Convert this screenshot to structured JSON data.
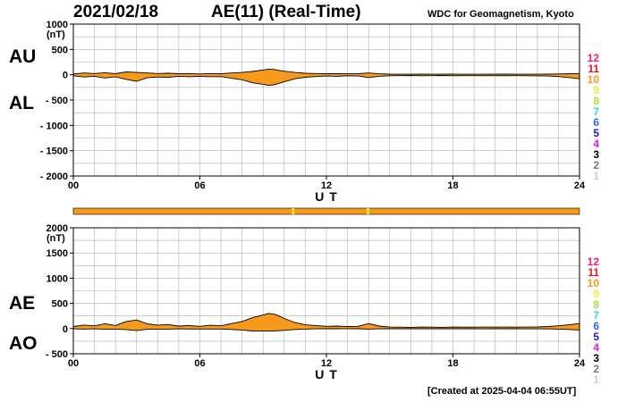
{
  "header": {
    "date": "2021/02/18",
    "title": "AE(11) (Real-Time)",
    "source": "WDC for Geomagnetism, Kyoto"
  },
  "footer": {
    "created": "[Created at 2025-04-04 06:55UT]"
  },
  "colors": {
    "fill": "#f79a1c",
    "outline": "#000000",
    "grid": "#b0b0b0",
    "status_bar": "#f79a1c",
    "status_gap": "#f5e03a"
  },
  "station_legend": [
    {
      "label": "12",
      "color": "#ff1d72"
    },
    {
      "label": "11",
      "color": "#e8141e"
    },
    {
      "label": "10",
      "color": "#f79a1c"
    },
    {
      "label": "9",
      "color": "#f2ea3a"
    },
    {
      "label": "8",
      "color": "#a8e03a"
    },
    {
      "label": "7",
      "color": "#30d9e8"
    },
    {
      "label": "6",
      "color": "#2a6be8"
    },
    {
      "label": "5",
      "color": "#2c16c8"
    },
    {
      "label": "4",
      "color": "#e818e0"
    },
    {
      "label": "3",
      "color": "#000000"
    },
    {
      "label": "2",
      "color": "#777777"
    },
    {
      "label": "1",
      "color": "#cfcfcf"
    }
  ],
  "status_bar": {
    "gaps_hours": [
      10.4,
      13.95
    ]
  },
  "chart_data": [
    {
      "type": "area",
      "panel": "AU/AL",
      "upper_label": "AU",
      "lower_label": "AL",
      "unit": "(nT)",
      "xlabel": "U T",
      "ylim": [
        -2000,
        1000
      ],
      "yticks": [
        1000,
        500,
        0,
        -500,
        -1000,
        -1500,
        -2000
      ],
      "ytick_labels": [
        "1000",
        "500",
        "0",
        "- 500",
        "- 1000",
        "- 1500",
        "- 2000"
      ],
      "xlim": [
        0,
        24
      ],
      "xticks": [
        0,
        6,
        12,
        18,
        24
      ],
      "xtick_labels": [
        "00",
        "06",
        "12",
        "18",
        "24"
      ],
      "grid": true,
      "series": [
        {
          "name": "AU",
          "x": [
            0,
            0.5,
            1,
            1.5,
            2,
            2.5,
            3,
            3.5,
            4,
            4.5,
            5,
            5.5,
            6,
            6.5,
            7,
            7.5,
            8,
            8.5,
            9,
            9.25,
            9.5,
            9.75,
            10,
            10.5,
            11,
            11.5,
            12,
            12.5,
            13,
            13.5,
            14,
            14.5,
            15,
            15.5,
            16,
            16.5,
            17,
            17.5,
            18,
            18.5,
            19,
            19.5,
            20,
            20.5,
            21,
            21.5,
            22,
            22.5,
            23,
            23.5,
            24
          ],
          "values": [
            15,
            35,
            25,
            40,
            20,
            55,
            45,
            35,
            25,
            30,
            20,
            25,
            15,
            25,
            20,
            35,
            45,
            65,
            95,
            110,
            105,
            85,
            70,
            45,
            30,
            25,
            20,
            22,
            18,
            20,
            35,
            18,
            12,
            10,
            10,
            12,
            10,
            10,
            12,
            10,
            10,
            10,
            10,
            12,
            10,
            10,
            10,
            12,
            15,
            20,
            25
          ]
        },
        {
          "name": "AL",
          "x": [
            0,
            0.5,
            1,
            1.5,
            2,
            2.5,
            3,
            3.5,
            4,
            4.5,
            5,
            5.5,
            6,
            6.5,
            7,
            7.5,
            8,
            8.5,
            9,
            9.25,
            9.5,
            9.75,
            10,
            10.5,
            11,
            11.5,
            12,
            12.5,
            13,
            13.5,
            14,
            14.5,
            15,
            15.5,
            16,
            16.5,
            17,
            17.5,
            18,
            18.5,
            19,
            19.5,
            20,
            20.5,
            21,
            21.5,
            22,
            22.5,
            23,
            23.5,
            24
          ],
          "values": [
            -20,
            -45,
            -30,
            -65,
            -40,
            -90,
            -130,
            -60,
            -45,
            -50,
            -30,
            -40,
            -30,
            -40,
            -35,
            -70,
            -100,
            -160,
            -190,
            -210,
            -200,
            -170,
            -140,
            -80,
            -50,
            -35,
            -25,
            -30,
            -20,
            -25,
            -55,
            -30,
            -20,
            -18,
            -15,
            -20,
            -18,
            -15,
            -20,
            -18,
            -18,
            -20,
            -18,
            -20,
            -18,
            -20,
            -22,
            -25,
            -35,
            -55,
            -80
          ]
        }
      ]
    },
    {
      "type": "area",
      "panel": "AE/AO",
      "upper_label": "AE",
      "lower_label": "AO",
      "unit": "(nT)",
      "xlabel": "U T",
      "ylim": [
        -500,
        2000
      ],
      "yticks": [
        2000,
        1500,
        1000,
        500,
        0,
        -500
      ],
      "ytick_labels": [
        "2000",
        "1500",
        "1000",
        "500",
        "0",
        "- 500"
      ],
      "xlim": [
        0,
        24
      ],
      "xticks": [
        0,
        6,
        12,
        18,
        24
      ],
      "xtick_labels": [
        "00",
        "06",
        "12",
        "18",
        "24"
      ],
      "grid": true,
      "series": [
        {
          "name": "AE",
          "x": [
            0,
            0.5,
            1,
            1.5,
            2,
            2.5,
            3,
            3.5,
            4,
            4.5,
            5,
            5.5,
            6,
            6.5,
            7,
            7.5,
            8,
            8.5,
            9,
            9.25,
            9.5,
            9.75,
            10,
            10.5,
            11,
            11.5,
            12,
            12.5,
            13,
            13.5,
            14,
            14.5,
            15,
            15.5,
            16,
            16.5,
            17,
            17.5,
            18,
            18.5,
            19,
            19.5,
            20,
            20.5,
            21,
            21.5,
            22,
            22.5,
            23,
            23.5,
            24
          ],
          "values": [
            40,
            70,
            55,
            95,
            60,
            140,
            170,
            95,
            70,
            80,
            50,
            60,
            45,
            65,
            55,
            100,
            140,
            220,
            270,
            300,
            290,
            250,
            200,
            120,
            75,
            60,
            45,
            50,
            40,
            45,
            100,
            50,
            30,
            28,
            25,
            30,
            28,
            25,
            30,
            28,
            28,
            30,
            28,
            30,
            28,
            30,
            32,
            40,
            55,
            75,
            100
          ]
        },
        {
          "name": "AO",
          "x": [
            0,
            0.5,
            1,
            1.5,
            2,
            2.5,
            3,
            3.5,
            4,
            4.5,
            5,
            5.5,
            6,
            6.5,
            7,
            7.5,
            8,
            8.5,
            9,
            9.25,
            9.5,
            9.75,
            10,
            10.5,
            11,
            11.5,
            12,
            12.5,
            13,
            13.5,
            14,
            14.5,
            15,
            15.5,
            16,
            16.5,
            17,
            17.5,
            18,
            18.5,
            19,
            19.5,
            20,
            20.5,
            21,
            21.5,
            22,
            22.5,
            23,
            23.5,
            24
          ],
          "values": [
            -5,
            -10,
            -5,
            -15,
            -10,
            -20,
            -40,
            -15,
            -10,
            -10,
            -5,
            -8,
            -8,
            -8,
            -8,
            -18,
            -28,
            -48,
            -50,
            -52,
            -48,
            -42,
            -35,
            -18,
            -10,
            -5,
            -3,
            -4,
            -2,
            -3,
            -10,
            -6,
            -4,
            -4,
            -3,
            -4,
            -4,
            -3,
            -4,
            -4,
            -4,
            -5,
            -4,
            -4,
            -4,
            -5,
            -6,
            -7,
            -10,
            -18,
            -28
          ]
        }
      ]
    }
  ]
}
